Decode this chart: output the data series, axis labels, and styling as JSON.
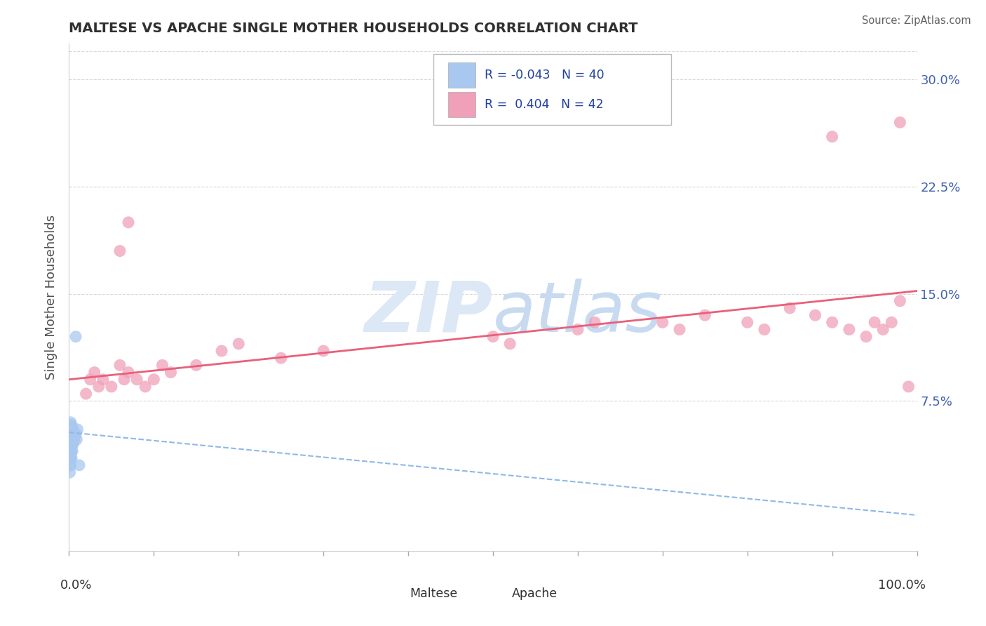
{
  "title": "MALTESE VS APACHE SINGLE MOTHER HOUSEHOLDS CORRELATION CHART",
  "source": "Source: ZipAtlas.com",
  "ylabel": "Single Mother Households",
  "legend_maltese_R": "-0.043",
  "legend_maltese_N": "40",
  "legend_apache_R": "0.404",
  "legend_apache_N": "42",
  "maltese_color": "#a8c8f0",
  "apache_color": "#f0a0b8",
  "maltese_line_color": "#90b8e8",
  "apache_line_color": "#e8607a",
  "background_color": "#ffffff",
  "watermark_color": "#dce8f5",
  "grid_color": "#d8d8d8",
  "title_color": "#303030",
  "source_color": "#606060",
  "ylabel_color": "#505050",
  "axis_label_color": "#4060b0",
  "legend_text_color": "#2040a0",
  "bottom_legend_color": "#303030",
  "xlim": [
    0.0,
    1.0
  ],
  "ylim": [
    -0.03,
    0.325
  ],
  "yticks": [
    0.075,
    0.15,
    0.225,
    0.3
  ],
  "ytick_labels": [
    "7.5%",
    "15.0%",
    "22.5%",
    "30.0%"
  ],
  "maltese_x": [
    0.001,
    0.001,
    0.001,
    0.001,
    0.001,
    0.001,
    0.001,
    0.001,
    0.001,
    0.001,
    0.001,
    0.002,
    0.002,
    0.002,
    0.002,
    0.002,
    0.002,
    0.002,
    0.002,
    0.002,
    0.003,
    0.003,
    0.003,
    0.003,
    0.003,
    0.003,
    0.004,
    0.004,
    0.004,
    0.004,
    0.005,
    0.005,
    0.005,
    0.006,
    0.006,
    0.007,
    0.008,
    0.009,
    0.01,
    0.012
  ],
  "maltese_y": [
    0.025,
    0.03,
    0.035,
    0.038,
    0.04,
    0.042,
    0.045,
    0.047,
    0.05,
    0.052,
    0.055,
    0.03,
    0.035,
    0.038,
    0.042,
    0.045,
    0.05,
    0.055,
    0.058,
    0.06,
    0.035,
    0.04,
    0.045,
    0.048,
    0.052,
    0.058,
    0.04,
    0.045,
    0.05,
    0.055,
    0.045,
    0.05,
    0.055,
    0.048,
    0.052,
    0.05,
    0.052,
    0.048,
    0.055,
    0.03
  ],
  "maltese_extra_x": [
    0.008
  ],
  "maltese_extra_y": [
    0.12
  ],
  "apache_x": [
    0.02,
    0.025,
    0.03,
    0.035,
    0.04,
    0.05,
    0.06,
    0.065,
    0.07,
    0.08,
    0.09,
    0.1,
    0.11,
    0.12,
    0.15,
    0.18,
    0.2,
    0.25,
    0.3,
    0.5,
    0.52,
    0.6,
    0.62,
    0.7,
    0.72,
    0.75,
    0.8,
    0.82,
    0.85,
    0.88,
    0.9,
    0.92,
    0.94,
    0.95,
    0.96,
    0.97,
    0.98,
    0.99,
    0.06,
    0.07,
    0.9,
    0.98
  ],
  "apache_y": [
    0.08,
    0.09,
    0.095,
    0.085,
    0.09,
    0.085,
    0.1,
    0.09,
    0.095,
    0.09,
    0.085,
    0.09,
    0.1,
    0.095,
    0.1,
    0.11,
    0.115,
    0.105,
    0.11,
    0.12,
    0.115,
    0.125,
    0.13,
    0.13,
    0.125,
    0.135,
    0.13,
    0.125,
    0.14,
    0.135,
    0.13,
    0.125,
    0.12,
    0.13,
    0.125,
    0.13,
    0.145,
    0.085,
    0.18,
    0.2,
    0.26,
    0.27
  ],
  "apache_line_x0": 0.0,
  "apache_line_y0": 0.09,
  "apache_line_x1": 1.0,
  "apache_line_y1": 0.152,
  "maltese_line_x0": 0.0,
  "maltese_line_y0": 0.053,
  "maltese_line_x1": 1.0,
  "maltese_line_y1": -0.005
}
